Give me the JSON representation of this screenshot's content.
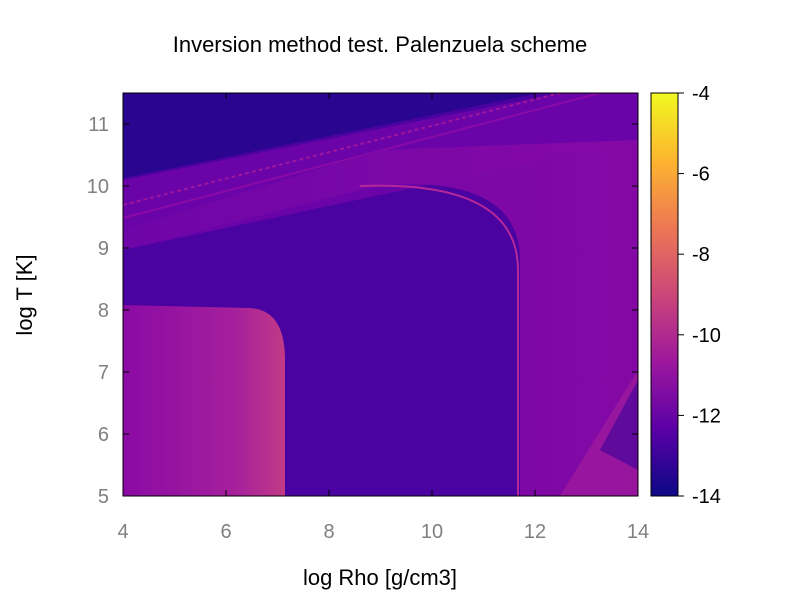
{
  "chart_data": {
    "type": "heatmap",
    "title": "Inversion method test. Palenzuela scheme",
    "xlabel": "log Rho [g/cm3]",
    "ylabel": "log T [K]",
    "xlim": [
      4,
      14
    ],
    "ylim": [
      5,
      11.5
    ],
    "x_ticks": [
      "4",
      "6",
      "8",
      "10",
      "12",
      "14"
    ],
    "y_ticks": [
      "5",
      "6",
      "7",
      "8",
      "9",
      "10",
      "11"
    ],
    "colorbar": {
      "range": [
        -14,
        -4
      ],
      "ticks": [
        "-4",
        "-6",
        "-8",
        "-10",
        "-12",
        "-14"
      ],
      "colormap": [
        "#0d0887",
        "#5c01a6",
        "#9c179e",
        "#cc4778",
        "#ed7953",
        "#fdb42f",
        "#f0f921"
      ]
    },
    "regions": [
      {
        "name": "background",
        "value": -12.2
      },
      {
        "name": "upper-left corner",
        "value": -13.4
      },
      {
        "name": "low density plateau",
        "value": -10.6
      },
      {
        "name": "high density plateau",
        "value": -11.4
      },
      {
        "name": "upper band",
        "value": -11.0
      },
      {
        "name": "ridge line at log Rho 11.7",
        "value": -9.8
      },
      {
        "name": "lower right wedge",
        "value": -10.5
      }
    ]
  }
}
